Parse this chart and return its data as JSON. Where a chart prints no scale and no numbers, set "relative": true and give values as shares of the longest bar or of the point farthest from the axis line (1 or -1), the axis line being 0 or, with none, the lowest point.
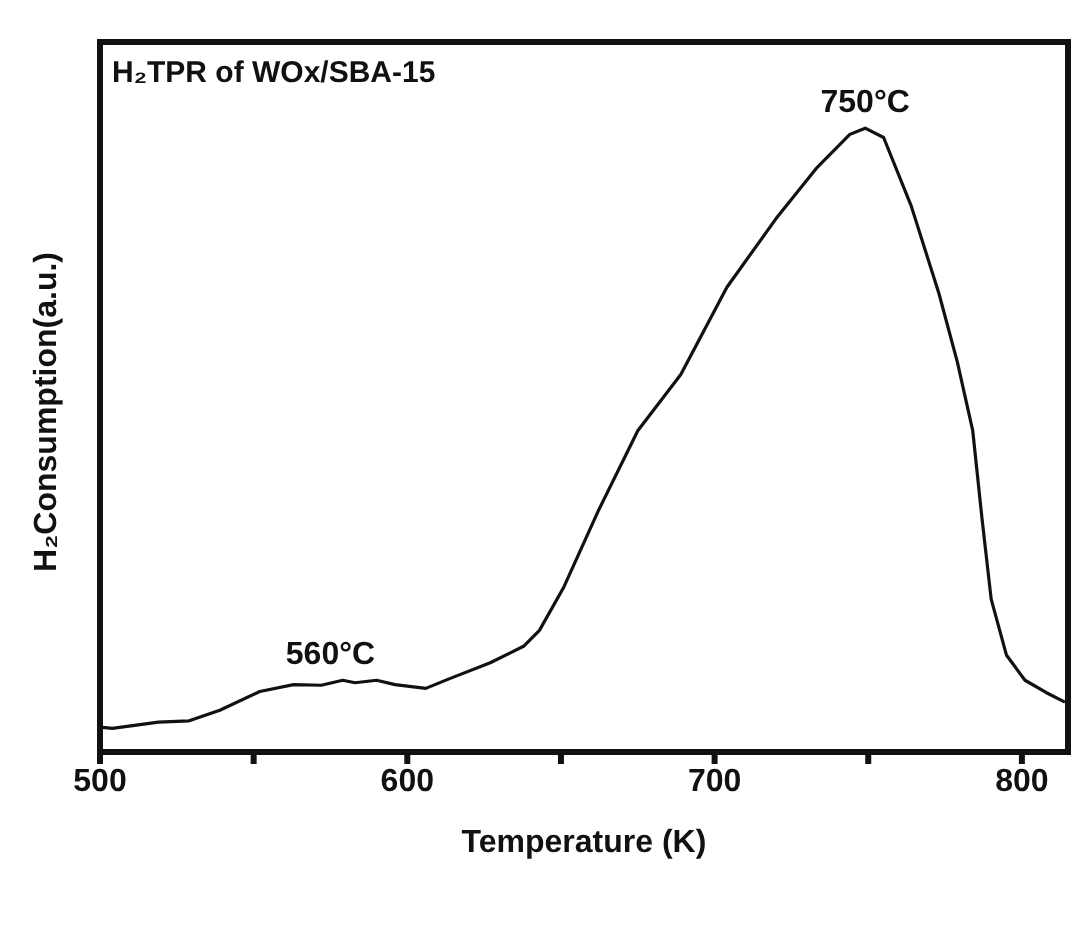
{
  "chart_data": {
    "type": "line",
    "title": "H₂TPR of WOx/SBA-15",
    "xlabel": "Temperature (K)",
    "ylabel": "H₂Consumption(a.u.)",
    "relative": true,
    "x": [
      500,
      504,
      519,
      529,
      539,
      552,
      563,
      572,
      579,
      583,
      590,
      596,
      606,
      614,
      627,
      638,
      643,
      651,
      662,
      675,
      689,
      704,
      720,
      733,
      744,
      749,
      755,
      764,
      773,
      779,
      784,
      787,
      790,
      795,
      801,
      808,
      814
    ],
    "series": [
      {
        "color": "#111111",
        "values": [
          0.04,
          0.038,
          0.048,
          0.05,
          0.067,
          0.097,
          0.108,
          0.107,
          0.115,
          0.111,
          0.115,
          0.108,
          0.102,
          0.118,
          0.143,
          0.17,
          0.195,
          0.265,
          0.385,
          0.515,
          0.605,
          0.745,
          0.855,
          0.935,
          0.99,
          1.0,
          0.985,
          0.875,
          0.735,
          0.625,
          0.515,
          0.375,
          0.245,
          0.155,
          0.115,
          0.095,
          0.08
        ]
      }
    ],
    "xlim": [
      500,
      815
    ],
    "xticks": [
      500,
      {
        "value": 550,
        "label": null
      },
      600,
      {
        "value": 650,
        "label": null
      },
      700,
      {
        "value": 750,
        "label": null
      },
      800
    ],
    "annotations": [
      {
        "text": "750°C",
        "x": 749,
        "y": 1.0
      },
      {
        "text": "560°C",
        "x": 575,
        "y": 0.115
      }
    ],
    "grid": false,
    "legend": false,
    "marker": "none",
    "line_style": "solid"
  }
}
